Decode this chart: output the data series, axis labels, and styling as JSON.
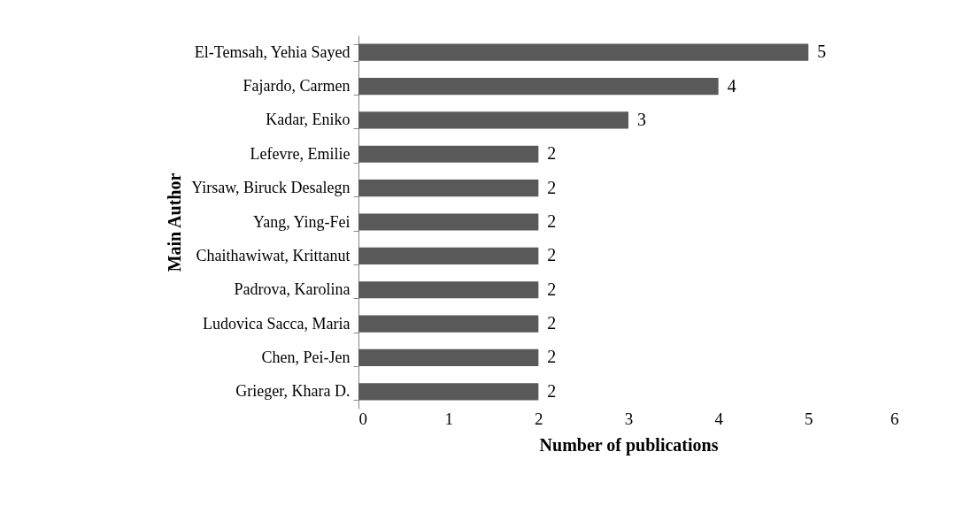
{
  "chart_data": {
    "type": "bar",
    "orientation": "horizontal",
    "xlabel": "Number of publications",
    "ylabel": "Main Author",
    "categories": [
      "El-Temsah, Yehia Sayed",
      "Fajardo, Carmen",
      "Kadar, Eniko",
      "Lefevre, Emilie",
      "Yirsaw, Biruck Desalegn",
      "Yang, Ying-Fei",
      "Chaithawiwat, Krittanut",
      "Padrova, Karolina",
      "Ludovica Sacca, Maria",
      "Chen, Pei-Jen",
      "Grieger, Khara D."
    ],
    "values": [
      5,
      4,
      3,
      2,
      2,
      2,
      2,
      2,
      2,
      2,
      2
    ],
    "color": "#595959",
    "xlim": [
      0,
      6
    ],
    "xticks": [
      0,
      1,
      2,
      3,
      4,
      5,
      6
    ],
    "grid": false,
    "data_labels": true
  }
}
